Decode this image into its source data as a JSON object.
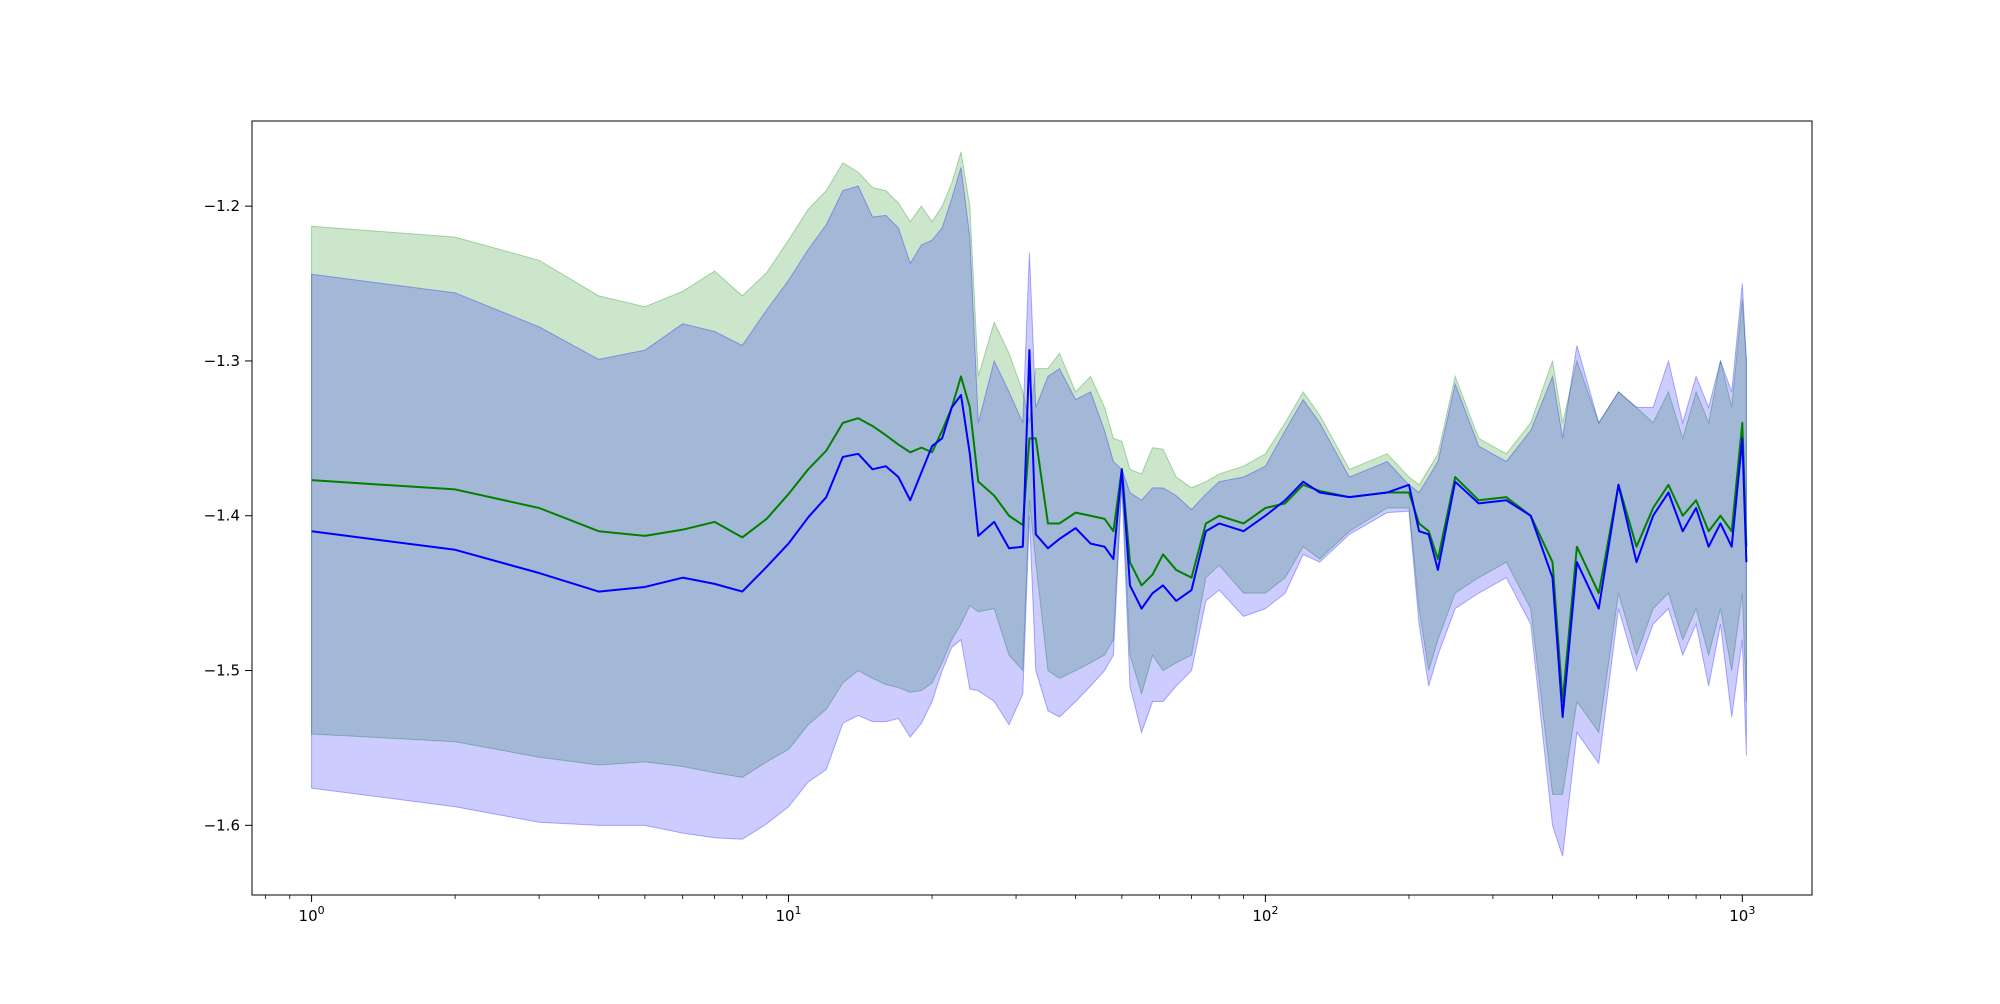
{
  "chart_data": {
    "type": "line",
    "title": "",
    "xlabel": "",
    "ylabel": "",
    "xscale": "log",
    "xlim": [
      0.75,
      1400
    ],
    "ylim": [
      -1.645,
      -1.145
    ],
    "grid": false,
    "x_ticks": [
      {
        "value": 1,
        "base": "10",
        "exp": "0"
      },
      {
        "value": 10,
        "base": "10",
        "exp": "1"
      },
      {
        "value": 100,
        "base": "10",
        "exp": "2"
      },
      {
        "value": 1000,
        "base": "10",
        "exp": "3"
      }
    ],
    "y_ticks": [
      {
        "value": -1.2,
        "label": "−1.2"
      },
      {
        "value": -1.3,
        "label": "−1.3"
      },
      {
        "value": -1.4,
        "label": "−1.4"
      },
      {
        "value": -1.5,
        "label": "−1.5"
      },
      {
        "value": -1.6,
        "label": "−1.6"
      }
    ],
    "colors": {
      "green": "#008000",
      "blue": "#0000ff",
      "green_fill": "#008000",
      "blue_fill": "#0000ff"
    },
    "series": [
      {
        "color": "#008000",
        "x": [
          1,
          2,
          3,
          4,
          5,
          6,
          7,
          8,
          9,
          10,
          11,
          12,
          13,
          14,
          15,
          16,
          17,
          18,
          19,
          20,
          21,
          22,
          23,
          24,
          25,
          27,
          29,
          31,
          32,
          33,
          35,
          37,
          40,
          43,
          46,
          48,
          50,
          52,
          55,
          58,
          61,
          65,
          70,
          75,
          80,
          90,
          100,
          110,
          120,
          130,
          150,
          180,
          200,
          210,
          220,
          230,
          250,
          280,
          320,
          360,
          400,
          420,
          450,
          500,
          550,
          600,
          650,
          700,
          750,
          800,
          850,
          900,
          950,
          1000,
          1020
        ],
        "y": [
          -1.377,
          -1.383,
          -1.395,
          -1.41,
          -1.413,
          -1.409,
          -1.404,
          -1.414,
          -1.402,
          -1.386,
          -1.37,
          -1.358,
          -1.34,
          -1.337,
          -1.342,
          -1.348,
          -1.354,
          -1.359,
          -1.356,
          -1.359,
          -1.345,
          -1.33,
          -1.31,
          -1.33,
          -1.378,
          -1.387,
          -1.4,
          -1.406,
          -1.35,
          -1.35,
          -1.405,
          -1.405,
          -1.398,
          -1.4,
          -1.402,
          -1.41,
          -1.37,
          -1.43,
          -1.445,
          -1.438,
          -1.425,
          -1.435,
          -1.44,
          -1.405,
          -1.4,
          -1.405,
          -1.395,
          -1.392,
          -1.38,
          -1.384,
          -1.388,
          -1.385,
          -1.385,
          -1.405,
          -1.41,
          -1.428,
          -1.375,
          -1.39,
          -1.388,
          -1.4,
          -1.43,
          -1.52,
          -1.42,
          -1.45,
          -1.38,
          -1.42,
          -1.395,
          -1.38,
          -1.4,
          -1.39,
          -1.41,
          -1.4,
          -1.41,
          -1.34,
          -1.42
        ]
      },
      {
        "color": "#0000ff",
        "x": [
          1,
          2,
          3,
          4,
          5,
          6,
          7,
          8,
          9,
          10,
          11,
          12,
          13,
          14,
          15,
          16,
          17,
          18,
          19,
          20,
          21,
          22,
          23,
          24,
          25,
          27,
          29,
          31,
          32,
          33,
          35,
          37,
          40,
          43,
          46,
          48,
          50,
          52,
          55,
          58,
          61,
          65,
          70,
          75,
          80,
          90,
          100,
          110,
          120,
          130,
          150,
          180,
          200,
          210,
          220,
          230,
          250,
          280,
          320,
          360,
          400,
          420,
          450,
          500,
          550,
          600,
          650,
          700,
          750,
          800,
          850,
          900,
          950,
          1000,
          1020
        ],
        "y": [
          -1.41,
          -1.422,
          -1.437,
          -1.449,
          -1.446,
          -1.44,
          -1.444,
          -1.449,
          -1.433,
          -1.418,
          -1.401,
          -1.388,
          -1.362,
          -1.36,
          -1.37,
          -1.368,
          -1.375,
          -1.39,
          -1.372,
          -1.355,
          -1.35,
          -1.33,
          -1.322,
          -1.36,
          -1.413,
          -1.404,
          -1.421,
          -1.42,
          -1.293,
          -1.412,
          -1.421,
          -1.415,
          -1.408,
          -1.418,
          -1.42,
          -1.428,
          -1.37,
          -1.445,
          -1.46,
          -1.45,
          -1.445,
          -1.455,
          -1.448,
          -1.41,
          -1.405,
          -1.41,
          -1.4,
          -1.39,
          -1.378,
          -1.385,
          -1.388,
          -1.385,
          -1.38,
          -1.41,
          -1.412,
          -1.435,
          -1.378,
          -1.392,
          -1.39,
          -1.4,
          -1.44,
          -1.53,
          -1.43,
          -1.46,
          -1.38,
          -1.43,
          -1.4,
          -1.385,
          -1.41,
          -1.395,
          -1.42,
          -1.405,
          -1.42,
          -1.35,
          -1.43
        ]
      }
    ],
    "bands": [
      {
        "color": "#008000",
        "opacity": 0.2,
        "x": [
          1,
          2,
          3,
          4,
          5,
          6,
          7,
          8,
          9,
          10,
          11,
          12,
          13,
          14,
          15,
          16,
          17,
          18,
          19,
          20,
          21,
          22,
          23,
          24,
          25,
          27,
          29,
          31,
          32,
          33,
          35,
          37,
          40,
          43,
          46,
          48,
          50,
          52,
          55,
          58,
          61,
          65,
          70,
          75,
          80,
          90,
          100,
          110,
          120,
          130,
          150,
          180,
          200,
          210,
          220,
          230,
          250,
          280,
          320,
          360,
          400,
          420,
          450,
          500,
          550,
          600,
          650,
          700,
          750,
          800,
          850,
          900,
          950,
          1000,
          1020
        ],
        "upper": [
          -1.213,
          -1.22,
          -1.235,
          -1.258,
          -1.265,
          -1.255,
          -1.242,
          -1.258,
          -1.243,
          -1.222,
          -1.202,
          -1.19,
          -1.172,
          -1.178,
          -1.188,
          -1.19,
          -1.198,
          -1.21,
          -1.2,
          -1.21,
          -1.2,
          -1.185,
          -1.165,
          -1.2,
          -1.31,
          -1.275,
          -1.295,
          -1.32,
          -1.34,
          -1.305,
          -1.305,
          -1.295,
          -1.32,
          -1.31,
          -1.33,
          -1.35,
          -1.352,
          -1.37,
          -1.373,
          -1.356,
          -1.357,
          -1.375,
          -1.382,
          -1.378,
          -1.373,
          -1.368,
          -1.36,
          -1.34,
          -1.32,
          -1.335,
          -1.37,
          -1.36,
          -1.375,
          -1.38,
          -1.37,
          -1.36,
          -1.31,
          -1.35,
          -1.36,
          -1.34,
          -1.3,
          -1.34,
          -1.3,
          -1.34,
          -1.32,
          -1.33,
          -1.34,
          -1.32,
          -1.35,
          -1.32,
          -1.34,
          -1.3,
          -1.33,
          -1.26,
          -1.3
        ],
        "lower": [
          -1.541,
          -1.546,
          -1.556,
          -1.561,
          -1.559,
          -1.562,
          -1.566,
          -1.569,
          -1.559,
          -1.551,
          -1.535,
          -1.525,
          -1.508,
          -1.5,
          -1.505,
          -1.509,
          -1.511,
          -1.514,
          -1.513,
          -1.508,
          -1.495,
          -1.48,
          -1.47,
          -1.458,
          -1.462,
          -1.46,
          -1.49,
          -1.5,
          -1.39,
          -1.43,
          -1.5,
          -1.505,
          -1.5,
          -1.495,
          -1.49,
          -1.48,
          -1.375,
          -1.49,
          -1.515,
          -1.49,
          -1.5,
          -1.495,
          -1.49,
          -1.44,
          -1.432,
          -1.45,
          -1.45,
          -1.44,
          -1.42,
          -1.428,
          -1.41,
          -1.395,
          -1.395,
          -1.46,
          -1.5,
          -1.48,
          -1.45,
          -1.44,
          -1.43,
          -1.46,
          -1.58,
          -1.58,
          -1.52,
          -1.54,
          -1.45,
          -1.49,
          -1.46,
          -1.45,
          -1.48,
          -1.46,
          -1.49,
          -1.46,
          -1.5,
          -1.45,
          -1.52
        ]
      },
      {
        "color": "#0000ff",
        "opacity": 0.2,
        "x": [
          1,
          2,
          3,
          4,
          5,
          6,
          7,
          8,
          9,
          10,
          11,
          12,
          13,
          14,
          15,
          16,
          17,
          18,
          19,
          20,
          21,
          22,
          23,
          24,
          25,
          27,
          29,
          31,
          32,
          33,
          35,
          37,
          40,
          43,
          46,
          48,
          50,
          52,
          55,
          58,
          61,
          65,
          70,
          75,
          80,
          90,
          100,
          110,
          120,
          130,
          150,
          180,
          200,
          210,
          220,
          230,
          250,
          280,
          320,
          360,
          400,
          420,
          450,
          500,
          550,
          600,
          650,
          700,
          750,
          800,
          850,
          900,
          950,
          1000,
          1020
        ],
        "upper": [
          -1.244,
          -1.256,
          -1.278,
          -1.299,
          -1.293,
          -1.276,
          -1.281,
          -1.29,
          -1.267,
          -1.248,
          -1.228,
          -1.212,
          -1.19,
          -1.187,
          -1.207,
          -1.206,
          -1.214,
          -1.237,
          -1.225,
          -1.222,
          -1.214,
          -1.195,
          -1.175,
          -1.22,
          -1.34,
          -1.3,
          -1.32,
          -1.34,
          -1.23,
          -1.33,
          -1.31,
          -1.305,
          -1.325,
          -1.32,
          -1.345,
          -1.365,
          -1.37,
          -1.385,
          -1.39,
          -1.382,
          -1.382,
          -1.387,
          -1.396,
          -1.386,
          -1.378,
          -1.375,
          -1.368,
          -1.345,
          -1.325,
          -1.34,
          -1.375,
          -1.365,
          -1.38,
          -1.385,
          -1.375,
          -1.365,
          -1.315,
          -1.355,
          -1.365,
          -1.345,
          -1.31,
          -1.35,
          -1.29,
          -1.34,
          -1.32,
          -1.33,
          -1.33,
          -1.3,
          -1.34,
          -1.31,
          -1.33,
          -1.3,
          -1.32,
          -1.25,
          -1.3
        ],
        "lower": [
          -1.576,
          -1.588,
          -1.598,
          -1.6,
          -1.6,
          -1.605,
          -1.608,
          -1.609,
          -1.599,
          -1.588,
          -1.572,
          -1.564,
          -1.534,
          -1.529,
          -1.533,
          -1.533,
          -1.531,
          -1.543,
          -1.534,
          -1.52,
          -1.5,
          -1.485,
          -1.48,
          -1.512,
          -1.513,
          -1.52,
          -1.535,
          -1.515,
          -1.4,
          -1.5,
          -1.526,
          -1.53,
          -1.52,
          -1.51,
          -1.5,
          -1.49,
          -1.38,
          -1.51,
          -1.54,
          -1.52,
          -1.52,
          -1.51,
          -1.5,
          -1.455,
          -1.448,
          -1.465,
          -1.46,
          -1.45,
          -1.425,
          -1.43,
          -1.412,
          -1.398,
          -1.397,
          -1.47,
          -1.51,
          -1.49,
          -1.46,
          -1.45,
          -1.44,
          -1.47,
          -1.6,
          -1.62,
          -1.54,
          -1.56,
          -1.46,
          -1.5,
          -1.47,
          -1.46,
          -1.49,
          -1.47,
          -1.51,
          -1.47,
          -1.53,
          -1.48,
          -1.555
        ]
      }
    ]
  }
}
